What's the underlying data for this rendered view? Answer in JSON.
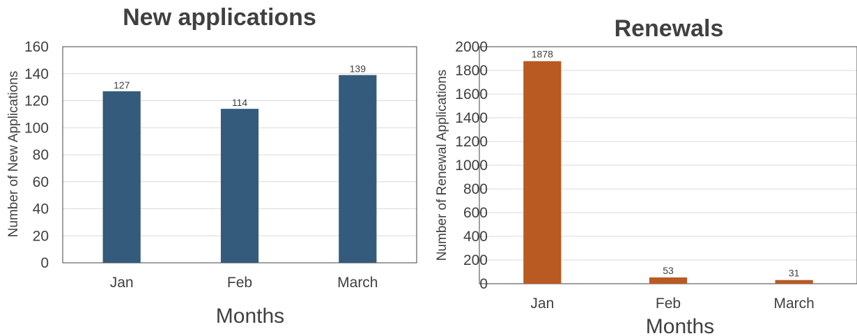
{
  "chart_data": [
    {
      "type": "bar",
      "title": "New applications",
      "categories": [
        "Jan",
        "Feb",
        "March"
      ],
      "values": [
        127,
        114,
        139
      ],
      "xlabel": "Months",
      "ylabel": "Number of New Applications",
      "ylim": [
        0,
        160
      ],
      "yticks": [
        0,
        20,
        40,
        60,
        80,
        100,
        120,
        140,
        160
      ],
      "grid": true,
      "color": "#345B7B"
    },
    {
      "type": "bar",
      "title": "Renewals",
      "categories": [
        "Jan",
        "Feb",
        "March"
      ],
      "values": [
        1878,
        53,
        31
      ],
      "xlabel": "Months",
      "ylabel": "Number of Renewal Applications",
      "ylim": [
        0,
        2000
      ],
      "yticks": [
        0,
        200,
        400,
        600,
        800,
        1000,
        1200,
        1400,
        1600,
        1800,
        2000
      ],
      "grid": true,
      "color": "#B85A22"
    }
  ]
}
